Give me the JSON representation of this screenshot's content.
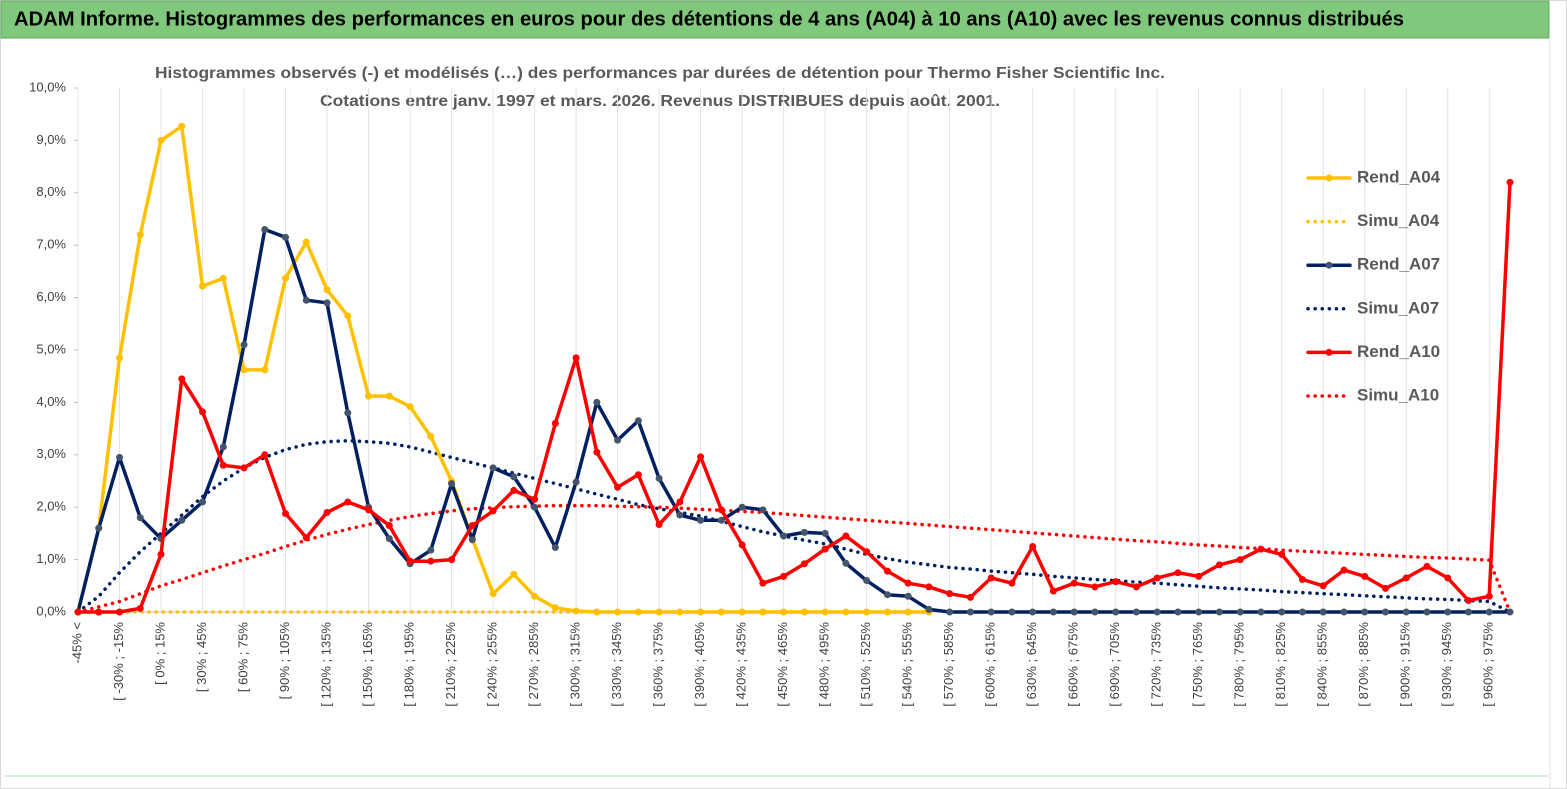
{
  "header": {
    "title": "ADAM Informe. Histogrammes des performances en euros pour des détentions de 4 ans (A04) à 10 ans (A10) avec les revenus connus distribués"
  },
  "chart_data": {
    "type": "line",
    "subtitle": [
      "Histogrammes observés (-) et modélisés (…) des performances par durées de détention pour Thermo Fisher Scientific Inc.",
      "Cotations entre janv. 1997 et mars. 2026. Revenus DISTRIBUES depuis août. 2001."
    ],
    "categories": [
      "-45% <",
      null,
      "[ -30% ; -15%",
      null,
      "[ 0% ; 15%",
      null,
      "[ 30% ; 45%",
      null,
      "[ 60% ; 75%",
      null,
      "[ 90% ; 105%",
      null,
      "[ 120% ; 135%",
      null,
      "[ 150% ; 165%",
      null,
      "[ 180% ; 195%",
      null,
      "[ 210% ; 225%",
      null,
      "[ 240% ; 255%",
      null,
      "[ 270% ; 285%",
      null,
      "[ 300% ; 315%",
      null,
      "[ 330% ; 345%",
      null,
      "[ 360% ; 375%",
      null,
      "[ 390% ; 405%",
      null,
      "[ 420% ; 435%",
      null,
      "[ 450% ; 465%",
      null,
      "[ 480% ; 495%",
      null,
      "[ 510% ; 525%",
      null,
      "[ 540% ; 555%",
      null,
      "[ 570% ; 585%",
      null,
      "[ 600% ; 615%",
      null,
      "[ 630% ; 645%",
      null,
      "[ 660% ; 675%",
      null,
      "[ 690% ; 705%",
      null,
      "[ 720% ; 735%",
      null,
      "[ 750% ; 765%",
      null,
      "[ 780% ; 795%",
      null,
      "[ 810% ; 825%",
      null,
      "[ 840% ; 855%",
      null,
      "[ 870% ; 885%",
      null,
      "[ 900% ; 915%",
      null,
      "[ 930% ; 945%",
      null,
      "[ 960% ; 975%",
      null
    ],
    "series": [
      {
        "name": "Rend_A04",
        "color": "#ffc000",
        "line_style": "solid",
        "markers": true,
        "values": [
          0,
          1.6,
          4.85,
          7.2,
          9.0,
          9.27,
          6.22,
          6.37,
          4.62,
          4.62,
          6.37,
          7.06,
          6.15,
          5.65,
          4.12,
          4.12,
          3.92,
          3.35,
          2.5,
          1.4,
          0.35,
          0.72,
          0.3,
          0.08,
          0.02,
          0,
          0,
          0,
          0,
          0,
          0,
          0,
          0,
          0,
          0,
          0,
          0,
          0,
          0,
          0,
          0,
          0,
          null,
          null,
          null,
          null,
          null,
          null,
          null,
          null,
          null,
          null,
          null,
          null,
          null,
          null,
          null,
          null,
          null,
          null,
          null,
          null,
          null,
          null,
          null,
          null,
          null,
          null,
          null,
          null
        ]
      },
      {
        "name": "Simu_A04",
        "color": "#ffc000",
        "line_style": "dotted",
        "markers": false,
        "values": [
          0,
          0,
          0,
          0,
          0,
          0,
          0,
          0,
          0,
          0,
          0,
          0,
          0,
          0,
          0,
          0,
          0,
          0,
          0,
          0,
          0,
          0,
          0,
          0,
          0,
          0,
          0,
          0,
          0,
          0,
          0,
          0,
          0,
          0,
          0,
          0,
          0,
          0,
          0,
          0,
          0,
          0,
          null,
          null,
          null,
          null,
          null,
          null,
          null,
          null,
          null,
          null,
          null,
          null,
          null,
          null,
          null,
          null,
          null,
          null,
          null,
          null,
          null,
          null,
          null,
          null,
          null,
          null,
          null,
          null
        ]
      },
      {
        "name": "Rend_A07",
        "color": "#002060",
        "line_style": "solid",
        "markers": true,
        "values": [
          0,
          1.6,
          2.95,
          1.8,
          1.4,
          1.75,
          2.1,
          3.15,
          5.1,
          7.3,
          7.15,
          5.95,
          5.9,
          3.8,
          2.0,
          1.4,
          0.92,
          1.18,
          2.45,
          1.38,
          2.75,
          2.58,
          2.0,
          1.23,
          2.48,
          4.0,
          3.28,
          3.65,
          2.55,
          1.85,
          1.75,
          1.75,
          2.0,
          1.95,
          1.45,
          1.52,
          1.5,
          0.93,
          0.6,
          0.33,
          0.3,
          0.05,
          0,
          0,
          0,
          0,
          0,
          0,
          0,
          0,
          0,
          0,
          0,
          0,
          0,
          0,
          0,
          0,
          0,
          0,
          0,
          0,
          0,
          0,
          0,
          0,
          0,
          0,
          0,
          0
        ]
      },
      {
        "name": "Simu_A07",
        "color": "#002060",
        "line_style": "dotted",
        "markers": false,
        "values": [
          0,
          0.3,
          0.75,
          1.15,
          1.5,
          1.85,
          2.2,
          2.5,
          2.75,
          2.95,
          3.1,
          3.2,
          3.25,
          3.27,
          3.25,
          3.22,
          3.15,
          3.05,
          2.95,
          2.85,
          2.75,
          2.65,
          2.55,
          2.45,
          2.35,
          2.25,
          2.15,
          2.05,
          1.97,
          1.9,
          1.83,
          1.73,
          1.63,
          1.53,
          1.45,
          1.37,
          1.3,
          1.2,
          1.1,
          1.02,
          0.95,
          0.9,
          0.85,
          0.82,
          0.78,
          0.75,
          0.72,
          0.68,
          0.65,
          0.62,
          0.6,
          0.57,
          0.55,
          0.52,
          0.49,
          0.46,
          0.44,
          0.42,
          0.39,
          0.37,
          0.35,
          0.33,
          0.31,
          0.29,
          0.27,
          0.25,
          0.24,
          0.22,
          0.2,
          0
        ]
      },
      {
        "name": "Rend_A10",
        "color": "#ff0000",
        "line_style": "solid",
        "markers": true,
        "values": [
          0,
          0,
          0,
          0.07,
          1.1,
          4.45,
          3.82,
          2.8,
          2.75,
          3.0,
          1.88,
          1.42,
          1.9,
          2.1,
          1.95,
          1.65,
          0.97,
          0.97,
          1.0,
          1.65,
          1.93,
          2.32,
          2.15,
          3.6,
          4.85,
          3.05,
          2.38,
          2.62,
          1.67,
          2.1,
          2.96,
          1.95,
          1.28,
          0.55,
          0.68,
          0.92,
          1.2,
          1.45,
          1.15,
          0.78,
          0.55,
          0.48,
          0.35,
          0.28,
          0.65,
          0.55,
          1.25,
          0.4,
          0.55,
          0.48,
          0.58,
          0.48,
          0.65,
          0.75,
          0.68,
          0.9,
          1.0,
          1.2,
          1.1,
          0.62,
          0.5,
          0.8,
          0.68,
          0.45,
          0.65,
          0.87,
          0.65,
          0.22,
          0.3,
          8.2
        ]
      },
      {
        "name": "Simu_A10",
        "color": "#ff0000",
        "line_style": "dotted",
        "markers": false,
        "values": [
          0,
          0.1,
          0.2,
          0.35,
          0.5,
          0.62,
          0.75,
          0.88,
          1.0,
          1.12,
          1.25,
          1.37,
          1.48,
          1.58,
          1.67,
          1.75,
          1.82,
          1.88,
          1.93,
          1.97,
          1.99,
          2.01,
          2.02,
          2.03,
          2.03,
          2.03,
          2.02,
          2.01,
          2.0,
          1.98,
          1.96,
          1.94,
          1.92,
          1.9,
          1.87,
          1.84,
          1.81,
          1.78,
          1.75,
          1.72,
          1.69,
          1.66,
          1.63,
          1.6,
          1.57,
          1.54,
          1.51,
          1.48,
          1.45,
          1.42,
          1.39,
          1.36,
          1.34,
          1.31,
          1.28,
          1.26,
          1.23,
          1.21,
          1.18,
          1.16,
          1.14,
          1.12,
          1.1,
          1.08,
          1.06,
          1.04,
          1.03,
          1.01,
          0.99,
          0
        ]
      }
    ],
    "ylim": [
      0,
      10
    ],
    "yticks": [
      {
        "value": 0,
        "label": "0,0%"
      },
      {
        "value": 1,
        "label": "1,0%"
      },
      {
        "value": 2,
        "label": "2,0%"
      },
      {
        "value": 3,
        "label": "3,0%"
      },
      {
        "value": 4,
        "label": "4,0%"
      },
      {
        "value": 5,
        "label": "5,0%"
      },
      {
        "value": 6,
        "label": "6,0%"
      },
      {
        "value": 7,
        "label": "7,0%"
      },
      {
        "value": 8,
        "label": "8,0%"
      },
      {
        "value": 9,
        "label": "9,0%"
      },
      {
        "value": 10,
        "label": "10,0%"
      }
    ],
    "grid": true,
    "legend": "right"
  }
}
